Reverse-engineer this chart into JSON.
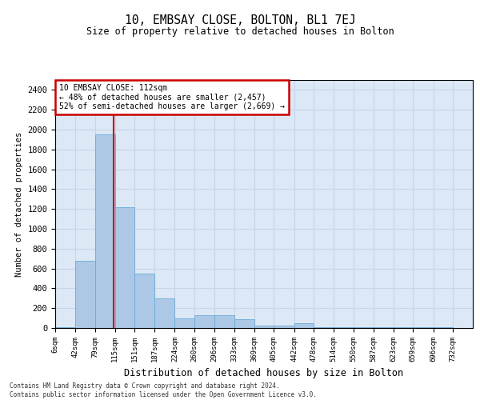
{
  "title": "10, EMBSAY CLOSE, BOLTON, BL1 7EJ",
  "subtitle": "Size of property relative to detached houses in Bolton",
  "xlabel": "Distribution of detached houses by size in Bolton",
  "ylabel": "Number of detached properties",
  "annotation_line1": "10 EMBSAY CLOSE: 112sqm",
  "annotation_line2": "← 48% of detached houses are smaller (2,457)",
  "annotation_line3": "52% of semi-detached houses are larger (2,669) →",
  "property_size": 112,
  "bin_edges": [
    6,
    42,
    79,
    115,
    151,
    187,
    224,
    260,
    296,
    333,
    369,
    405,
    442,
    478,
    514,
    550,
    587,
    623,
    659,
    696,
    732
  ],
  "bar_heights": [
    5,
    680,
    1950,
    1220,
    550,
    300,
    100,
    130,
    130,
    90,
    25,
    25,
    50,
    5,
    5,
    5,
    5,
    5,
    5,
    5
  ],
  "bar_color": "#adc8e6",
  "bar_edge_color": "#6aaad4",
  "red_line_color": "#cc0000",
  "ylim": [
    0,
    2500
  ],
  "yticks": [
    0,
    200,
    400,
    600,
    800,
    1000,
    1200,
    1400,
    1600,
    1800,
    2000,
    2200,
    2400
  ],
  "grid_color": "#c8d4e8",
  "background_color": "#dce8f5",
  "footer_line1": "Contains HM Land Registry data © Crown copyright and database right 2024.",
  "footer_line2": "Contains public sector information licensed under the Open Government Licence v3.0."
}
